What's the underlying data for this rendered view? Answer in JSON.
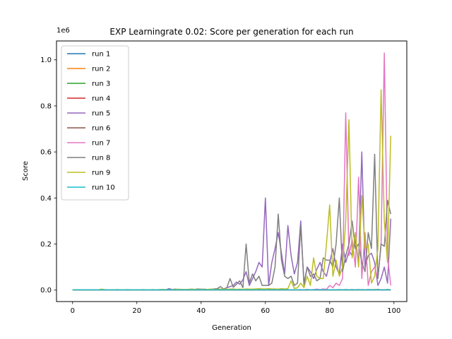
{
  "chart_data": {
    "type": "line",
    "title": "EXP Learningrate 0.02: Score per generation for each run",
    "xlabel": "Generation",
    "ylabel": "Score",
    "y_offset_text": "1e6",
    "xlim": [
      -5,
      104
    ],
    "ylim": [
      -0.05,
      1.082
    ],
    "xticks": [
      0,
      20,
      40,
      60,
      80,
      100
    ],
    "xtick_labels": [
      "0",
      "20",
      "40",
      "60",
      "80",
      "100"
    ],
    "yticks": [
      0.0,
      0.2,
      0.4,
      0.6,
      0.8,
      1.0
    ],
    "ytick_labels": [
      "0.0",
      "0.2",
      "0.4",
      "0.6",
      "0.8",
      "1.0"
    ],
    "grid": false,
    "legend_position": "upper-left",
    "x": [
      0,
      1,
      2,
      3,
      4,
      5,
      6,
      7,
      8,
      9,
      10,
      11,
      12,
      13,
      14,
      15,
      16,
      17,
      18,
      19,
      20,
      21,
      22,
      23,
      24,
      25,
      26,
      27,
      28,
      29,
      30,
      31,
      32,
      33,
      34,
      35,
      36,
      37,
      38,
      39,
      40,
      41,
      42,
      43,
      44,
      45,
      46,
      47,
      48,
      49,
      50,
      51,
      52,
      53,
      54,
      55,
      56,
      57,
      58,
      59,
      60,
      61,
      62,
      63,
      64,
      65,
      66,
      67,
      68,
      69,
      70,
      71,
      72,
      73,
      74,
      75,
      76,
      77,
      78,
      79,
      80,
      81,
      82,
      83,
      84,
      85,
      86,
      87,
      88,
      89,
      90,
      91,
      92,
      93,
      94,
      95,
      96,
      97,
      98,
      99
    ],
    "series": [
      {
        "name": "run 1",
        "color": "#1f77b4",
        "values": [
          0.001,
          0.001,
          0.001,
          0.001,
          0.001,
          0.001,
          0.001,
          0.001,
          0.001,
          0.001,
          0.001,
          0.001,
          0.001,
          0.001,
          0.001,
          0.001,
          0.001,
          0.001,
          0.001,
          0.001,
          0.001,
          0.001,
          0.001,
          0.001,
          0.001,
          0.001,
          0.001,
          0.001,
          0.001,
          0.001,
          0.001,
          0.001,
          0.001,
          0.001,
          0.001,
          0.001,
          0.001,
          0.001,
          0.001,
          0.001,
          0.001,
          0.001,
          0.001,
          0.001,
          0.001,
          0.001,
          0.001,
          0.001,
          0.001,
          0.001,
          0.001,
          0.001,
          0.001,
          0.001,
          0.001,
          0.001,
          0.001,
          0.001,
          0.001,
          0.001,
          0.001,
          0.001,
          0.001,
          0.001,
          0.001,
          0.001,
          0.001,
          0.001,
          0.001,
          0.001,
          0.001,
          0.001,
          0.001,
          0.001,
          0.001,
          0.001,
          0.001,
          0.001,
          0.001,
          0.001,
          0.001,
          0.001,
          0.001,
          0.001,
          0.001,
          0.002,
          0.001,
          0.001,
          0.001,
          0.002,
          0.001,
          0.001,
          0.002,
          0.001,
          0.001,
          0.002,
          0.001,
          0.001,
          0.002,
          0.001
        ]
      },
      {
        "name": "run 2",
        "color": "#ff7f0e",
        "values": [
          0.001,
          0.001,
          0.001,
          0.001,
          0.001,
          0.001,
          0.001,
          0.001,
          0.001,
          0.002,
          0.001,
          0.001,
          0.001,
          0.001,
          0.001,
          0.001,
          0.001,
          0.001,
          0.001,
          0.001,
          0.001,
          0.001,
          0.001,
          0.001,
          0.001,
          0.001,
          0.001,
          0.001,
          0.001,
          0.001,
          0.001,
          0.001,
          0.001,
          0.001,
          0.001,
          0.001,
          0.001,
          0.001,
          0.001,
          0.001,
          0.001,
          0.001,
          0.001,
          0.001,
          0.001,
          0.001,
          0.001,
          0.001,
          0.001,
          0.001,
          0.001,
          0.001,
          0.001,
          0.001,
          0.001,
          0.001,
          0.001,
          0.001,
          0.001,
          0.001,
          0.001,
          0.001,
          0.001,
          0.001,
          0.001,
          0.001,
          0.001,
          0.001,
          0.001,
          0.001,
          0.001,
          0.001,
          0.001,
          0.001,
          0.001,
          0.001,
          0.001,
          0.001,
          0.001,
          0.001,
          0.001,
          0.001,
          0.001,
          0.002,
          0.001,
          0.001,
          0.001,
          0.002,
          0.001,
          0.001,
          0.002,
          0.001,
          0.001,
          0.002,
          0.001,
          0.003,
          0.001,
          0.001,
          0.002,
          0.001
        ]
      },
      {
        "name": "run 3",
        "color": "#2ca02c",
        "values": [
          0.001,
          0.001,
          0.001,
          0.001,
          0.001,
          0.001,
          0.001,
          0.001,
          0.001,
          0.001,
          0.001,
          0.001,
          0.001,
          0.001,
          0.001,
          0.001,
          0.001,
          0.001,
          0.001,
          0.001,
          0.001,
          0.001,
          0.001,
          0.001,
          0.001,
          0.001,
          0.001,
          0.001,
          0.001,
          0.001,
          0.001,
          0.001,
          0.001,
          0.001,
          0.001,
          0.001,
          0.001,
          0.001,
          0.001,
          0.001,
          0.001,
          0.001,
          0.001,
          0.001,
          0.001,
          0.001,
          0.001,
          0.001,
          0.001,
          0.001,
          0.001,
          0.001,
          0.001,
          0.001,
          0.001,
          0.001,
          0.001,
          0.001,
          0.001,
          0.001,
          0.001,
          0.001,
          0.001,
          0.001,
          0.001,
          0.001,
          0.001,
          0.001,
          0.001,
          0.001,
          0.001,
          0.001,
          0.001,
          0.001,
          0.001,
          0.001,
          0.001,
          0.001,
          0.001,
          0.001,
          0.001,
          0.001,
          0.001,
          0.001,
          0.001,
          0.001,
          0.001,
          0.001,
          0.001,
          0.001,
          0.001,
          0.001,
          0.001,
          0.001,
          0.002,
          0.001,
          0.001,
          0.001,
          0.001,
          0.001
        ]
      },
      {
        "name": "run 4",
        "color": "#d62728",
        "values": [
          0.001,
          0.001,
          0.001,
          0.001,
          0.001,
          0.001,
          0.001,
          0.001,
          0.001,
          0.001,
          0.001,
          0.001,
          0.001,
          0.001,
          0.001,
          0.001,
          0.001,
          0.001,
          0.001,
          0.001,
          0.001,
          0.001,
          0.001,
          0.001,
          0.001,
          0.001,
          0.001,
          0.001,
          0.001,
          0.001,
          0.001,
          0.001,
          0.001,
          0.001,
          0.001,
          0.001,
          0.001,
          0.001,
          0.001,
          0.001,
          0.001,
          0.001,
          0.001,
          0.001,
          0.001,
          0.001,
          0.001,
          0.001,
          0.001,
          0.001,
          0.001,
          0.001,
          0.001,
          0.001,
          0.001,
          0.001,
          0.001,
          0.001,
          0.001,
          0.001,
          0.001,
          0.001,
          0.001,
          0.001,
          0.001,
          0.001,
          0.001,
          0.001,
          0.001,
          0.001,
          0.001,
          0.001,
          0.001,
          0.001,
          0.001,
          0.001,
          0.001,
          0.001,
          0.001,
          0.001,
          0.001,
          0.001,
          0.001,
          0.001,
          0.001,
          0.001,
          0.001,
          0.001,
          0.001,
          0.001,
          0.001,
          0.001,
          0.001,
          0.001,
          0.001,
          0.001,
          0.001,
          0.001,
          0.001,
          0.001
        ]
      },
      {
        "name": "run 5",
        "color": "#9467bd",
        "values": [
          0.001,
          0.001,
          0.001,
          0.001,
          0.001,
          0.001,
          0.001,
          0.001,
          0.001,
          0.001,
          0.001,
          0.001,
          0.001,
          0.001,
          0.001,
          0.001,
          0.001,
          0.001,
          0.001,
          0.001,
          0.001,
          0.001,
          0.001,
          0.001,
          0.001,
          0.001,
          0.001,
          0.001,
          0.001,
          0.001,
          0.006,
          0.003,
          0.004,
          0.002,
          0.002,
          0.002,
          0.001,
          0.002,
          0.002,
          0.003,
          0.004,
          0.002,
          0.003,
          0.002,
          0.002,
          0.005,
          0.003,
          0.004,
          0.01,
          0.015,
          0.02,
          0.035,
          0.025,
          0.045,
          0.08,
          0.02,
          0.05,
          0.08,
          0.12,
          0.1,
          0.4,
          0.02,
          0.12,
          0.18,
          0.25,
          0.16,
          0.07,
          0.28,
          0.15,
          0.07,
          0.12,
          0.3,
          0.02,
          0.1,
          0.08,
          0.05,
          0.09,
          0.12,
          0.08,
          0.06,
          0.12,
          0.18,
          0.1,
          0.07,
          0.2,
          0.12,
          0.17,
          0.15,
          0.22,
          0.12,
          0.6,
          0.1,
          0.15,
          0.16,
          0.12,
          0.02,
          0.05,
          0.1,
          0.03,
          0.31
        ]
      },
      {
        "name": "run 6",
        "color": "#8c564b",
        "values": [
          0.001,
          0.001,
          0.001,
          0.001,
          0.001,
          0.001,
          0.001,
          0.001,
          0.001,
          0.001,
          0.001,
          0.001,
          0.001,
          0.001,
          0.001,
          0.001,
          0.001,
          0.001,
          0.001,
          0.001,
          0.001,
          0.001,
          0.001,
          0.001,
          0.001,
          0.001,
          0.001,
          0.001,
          0.001,
          0.001,
          0.001,
          0.001,
          0.001,
          0.001,
          0.001,
          0.001,
          0.001,
          0.001,
          0.001,
          0.001,
          0.001,
          0.001,
          0.001,
          0.001,
          0.001,
          0.001,
          0.001,
          0.001,
          0.001,
          0.001,
          0.001,
          0.001,
          0.001,
          0.001,
          0.001,
          0.001,
          0.001,
          0.001,
          0.001,
          0.001,
          0.001,
          0.001,
          0.001,
          0.001,
          0.001,
          0.001,
          0.001,
          0.001,
          0.001,
          0.001,
          0.001,
          0.001,
          0.001,
          0.001,
          0.001,
          0.001,
          0.001,
          0.001,
          0.001,
          0.001,
          0.001,
          0.001,
          0.001,
          0.001,
          0.001,
          0.001,
          0.001,
          0.001,
          0.001,
          0.001,
          0.001,
          0.001,
          0.001,
          0.001,
          0.001,
          0.001,
          0.001,
          0.001,
          0.001,
          0.001
        ]
      },
      {
        "name": "run 7",
        "color": "#e377c2",
        "values": [
          0.001,
          0.001,
          0.001,
          0.001,
          0.001,
          0.001,
          0.001,
          0.001,
          0.001,
          0.001,
          0.001,
          0.001,
          0.001,
          0.001,
          0.001,
          0.001,
          0.001,
          0.001,
          0.001,
          0.001,
          0.001,
          0.001,
          0.001,
          0.001,
          0.001,
          0.001,
          0.001,
          0.001,
          0.001,
          0.001,
          0.001,
          0.001,
          0.001,
          0.001,
          0.001,
          0.001,
          0.001,
          0.001,
          0.001,
          0.001,
          0.001,
          0.001,
          0.001,
          0.001,
          0.001,
          0.001,
          0.001,
          0.001,
          0.001,
          0.001,
          0.001,
          0.001,
          0.001,
          0.001,
          0.001,
          0.001,
          0.001,
          0.001,
          0.001,
          0.001,
          0.001,
          0.001,
          0.001,
          0.001,
          0.001,
          0.001,
          0.001,
          0.001,
          0.001,
          0.001,
          0.001,
          0.002,
          0.001,
          0.003,
          0.001,
          0.002,
          0.004,
          0.002,
          0.005,
          0.003,
          0.02,
          0.01,
          0.03,
          0.02,
          0.05,
          0.77,
          0.15,
          0.22,
          0.1,
          0.49,
          0.05,
          0.25,
          0.02,
          0.08,
          0.1,
          0.05,
          0.2,
          1.03,
          0.15,
          0.02
        ]
      },
      {
        "name": "run 8",
        "color": "#7f7f7f",
        "values": [
          0.001,
          0.001,
          0.001,
          0.001,
          0.001,
          0.001,
          0.001,
          0.001,
          0.001,
          0.001,
          0.001,
          0.001,
          0.001,
          0.001,
          0.001,
          0.001,
          0.001,
          0.001,
          0.001,
          0.001,
          0.001,
          0.001,
          0.001,
          0.001,
          0.001,
          0.001,
          0.001,
          0.001,
          0.001,
          0.001,
          0.001,
          0.002,
          0.002,
          0.003,
          0.002,
          0.002,
          0.003,
          0.004,
          0.003,
          0.005,
          0.003,
          0.004,
          0.002,
          0.003,
          0.005,
          0.006,
          0.015,
          0.005,
          0.01,
          0.05,
          0.012,
          0.025,
          0.04,
          0.01,
          0.2,
          0.03,
          0.07,
          0.04,
          0.06,
          0.02,
          0.02,
          0.02,
          0.03,
          0.1,
          0.33,
          0.13,
          0.06,
          0.05,
          0.06,
          0.02,
          0.03,
          0.28,
          0.03,
          0.1,
          0.06,
          0.07,
          0.04,
          0.05,
          0.14,
          0.13,
          0.13,
          0.1,
          0.2,
          0.4,
          0.08,
          0.15,
          0.2,
          0.3,
          0.18,
          0.2,
          0.12,
          0.08,
          0.25,
          0.18,
          0.59,
          0.05,
          0.2,
          0.19,
          0.39,
          0.33
        ]
      },
      {
        "name": "run 9",
        "color": "#bcbd22",
        "values": [
          0.001,
          0.001,
          0.001,
          0.001,
          0.001,
          0.001,
          0.001,
          0.001,
          0.001,
          0.004,
          0.002,
          0.001,
          0.001,
          0.001,
          0.002,
          0.001,
          0.001,
          0.002,
          0.001,
          0.001,
          0.001,
          0.001,
          0.002,
          0.001,
          0.001,
          0.002,
          0.001,
          0.002,
          0.003,
          0.002,
          0.001,
          0.003,
          0.002,
          0.004,
          0.002,
          0.003,
          0.002,
          0.004,
          0.003,
          0.002,
          0.003,
          0.002,
          0.003,
          0.004,
          0.003,
          0.002,
          0.004,
          0.005,
          0.003,
          0.004,
          0.005,
          0.003,
          0.004,
          0.003,
          0.005,
          0.004,
          0.004,
          0.005,
          0.006,
          0.005,
          0.005,
          0.006,
          0.005,
          0.005,
          0.004,
          0.006,
          0.005,
          0.006,
          0.04,
          0.007,
          0.01,
          0.03,
          0.01,
          0.06,
          0.02,
          0.14,
          0.06,
          0.05,
          0.05,
          0.2,
          0.37,
          0.06,
          0.13,
          0.06,
          0.1,
          0.3,
          0.74,
          0.14,
          0.25,
          0.1,
          0.41,
          0.18,
          0.2,
          0.03,
          0.06,
          0.18,
          0.87,
          0.3,
          0.12,
          0.67
        ]
      },
      {
        "name": "run 10",
        "color": "#17becf",
        "values": [
          0.001,
          0.001,
          0.001,
          0.001,
          0.001,
          0.001,
          0.001,
          0.001,
          0.001,
          0.001,
          0.001,
          0.001,
          0.001,
          0.001,
          0.001,
          0.001,
          0.001,
          0.001,
          0.001,
          0.001,
          0.001,
          0.001,
          0.001,
          0.001,
          0.001,
          0.001,
          0.001,
          0.001,
          0.001,
          0.001,
          0.001,
          0.001,
          0.001,
          0.001,
          0.001,
          0.001,
          0.001,
          0.001,
          0.001,
          0.001,
          0.001,
          0.001,
          0.001,
          0.001,
          0.001,
          0.001,
          0.001,
          0.001,
          0.001,
          0.001,
          0.001,
          0.001,
          0.001,
          0.001,
          0.001,
          0.001,
          0.001,
          0.001,
          0.001,
          0.001,
          0.001,
          0.001,
          0.001,
          0.001,
          0.001,
          0.001,
          0.001,
          0.001,
          0.001,
          0.001,
          0.001,
          0.001,
          0.001,
          0.001,
          0.001,
          0.001,
          0.001,
          0.001,
          0.001,
          0.001,
          0.001,
          0.001,
          0.001,
          0.001,
          0.001,
          0.001,
          0.001,
          0.001,
          0.001,
          0.001,
          0.001,
          0.001,
          0.001,
          0.001,
          0.001,
          0.001,
          0.001,
          0.001,
          0.001,
          0.001
        ]
      }
    ]
  }
}
